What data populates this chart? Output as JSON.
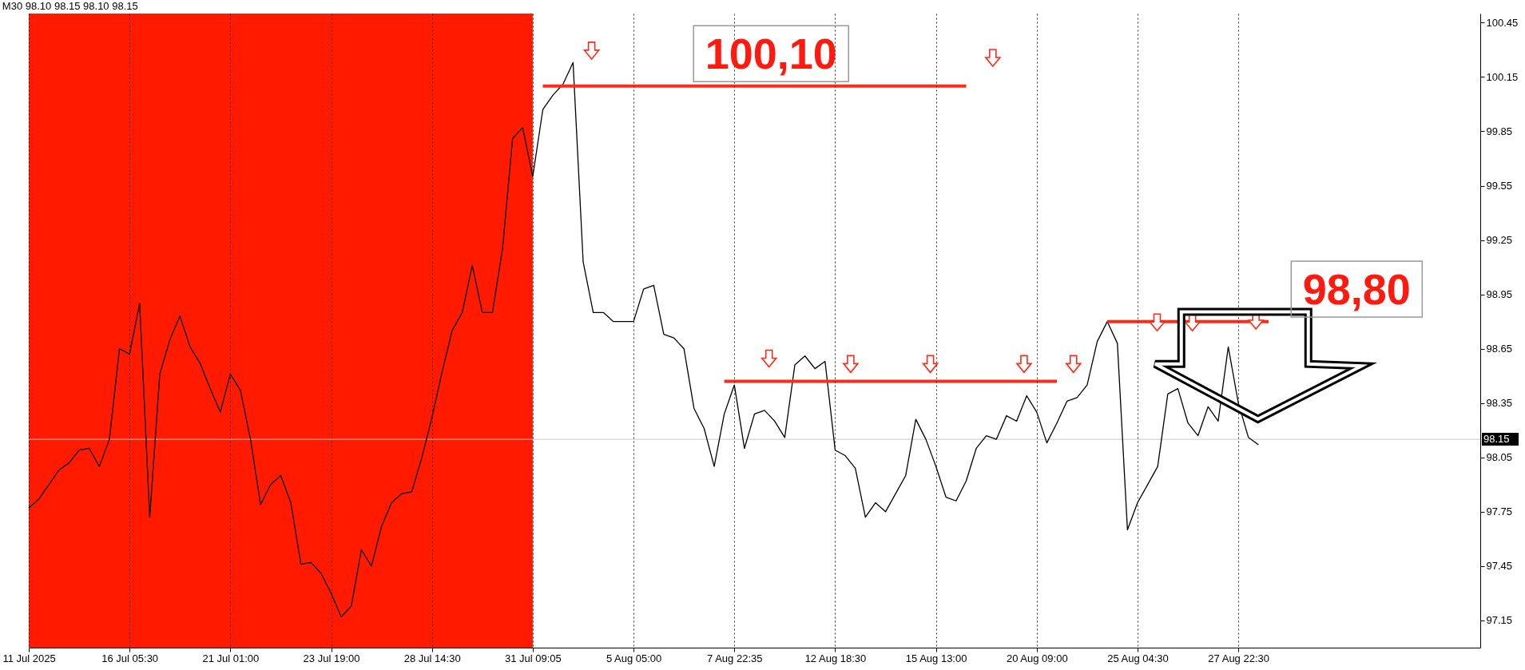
{
  "chart_data": {
    "type": "line",
    "title": "M30 98.10 98.15 98.10 98.15",
    "categories": [
      "11 Jul 2025",
      null,
      null,
      null,
      null,
      null,
      null,
      null,
      null,
      null,
      "16 Jul 05:30",
      null,
      null,
      null,
      null,
      null,
      null,
      null,
      null,
      null,
      "21 Jul 01:00",
      null,
      null,
      null,
      null,
      null,
      null,
      null,
      null,
      null,
      "23 Jul 19:00",
      null,
      null,
      null,
      null,
      null,
      null,
      null,
      null,
      null,
      "28 Jul 14:30",
      null,
      null,
      null,
      null,
      null,
      null,
      null,
      null,
      null,
      "31 Jul 09:05",
      null,
      null,
      null,
      null,
      null,
      null,
      null,
      null,
      null,
      "5 Aug 05:00",
      null,
      null,
      null,
      null,
      null,
      null,
      null,
      null,
      null,
      "7 Aug 22:35",
      null,
      null,
      null,
      null,
      null,
      null,
      null,
      null,
      null,
      "12 Aug 18:30",
      null,
      null,
      null,
      null,
      null,
      null,
      null,
      null,
      null,
      "15 Aug 13:00",
      null,
      null,
      null,
      null,
      null,
      null,
      null,
      null,
      null,
      "20 Aug 09:00",
      null,
      null,
      null,
      null,
      null,
      null,
      null,
      null,
      null,
      "25 Aug 04:30",
      null,
      null,
      null,
      null,
      null,
      null,
      null,
      null,
      null,
      "27 Aug 22:30",
      null,
      null,
      null,
      null,
      null,
      null,
      null,
      null,
      null,
      null,
      null,
      null,
      null,
      null,
      null,
      null,
      null,
      null,
      null,
      null,
      null,
      null,
      null,
      null
    ],
    "ylim": [
      97.0,
      100.5
    ],
    "yticks": [
      97.15,
      97.45,
      97.75,
      98.05,
      98.35,
      98.65,
      98.95,
      99.25,
      99.55,
      99.85,
      100.15,
      100.45
    ],
    "grid": "x",
    "line_style": "solid",
    "series": [
      {
        "color": "#000000",
        "values": [
          97.77,
          97.82,
          97.9,
          97.98,
          98.02,
          98.09,
          98.1,
          98.0,
          98.15,
          98.65,
          98.62,
          98.9,
          97.72,
          98.51,
          98.7,
          98.83,
          98.66,
          98.57,
          98.43,
          98.3,
          98.51,
          98.42,
          98.15,
          97.79,
          97.9,
          97.95,
          97.8,
          97.46,
          97.47,
          97.41,
          97.3,
          97.17,
          97.23,
          97.54,
          97.45,
          97.67,
          97.8,
          97.85,
          97.86,
          98.05,
          98.27,
          98.52,
          98.75,
          98.85,
          99.11,
          98.85,
          98.85,
          99.2,
          99.81,
          99.87,
          99.6,
          99.97,
          100.05,
          100.11,
          100.23,
          99.13,
          98.85,
          98.85,
          98.8,
          98.8,
          98.8,
          98.98,
          99.0,
          98.73,
          98.71,
          98.65,
          98.32,
          98.21,
          98.0,
          98.29,
          98.45,
          98.1,
          98.29,
          98.31,
          98.25,
          98.16,
          98.56,
          98.61,
          98.54,
          98.58,
          98.09,
          98.06,
          97.99,
          97.72,
          97.8,
          97.75,
          97.85,
          97.95,
          98.26,
          98.15,
          98.0,
          97.83,
          97.81,
          97.92,
          98.1,
          98.17,
          98.15,
          98.28,
          98.25,
          98.39,
          98.3,
          98.13,
          98.24,
          98.36,
          98.38,
          98.45,
          98.69,
          98.8,
          98.68,
          97.65,
          97.8,
          97.9,
          98.0,
          98.4,
          98.43,
          98.24,
          98.17,
          98.33,
          98.25,
          98.66,
          98.35,
          98.16,
          98.12,
          null,
          null,
          null,
          null,
          null,
          null,
          null,
          null,
          null,
          null,
          null,
          null,
          null,
          null,
          null,
          null,
          null,
          null,
          null,
          null,
          null,
          null
        ]
      },
      {
        "color": "#ff2a1a",
        "values": [
          null,
          null,
          null,
          null,
          null,
          null,
          null,
          null,
          null,
          null,
          null,
          null,
          null,
          null,
          null,
          null,
          null,
          null,
          null,
          null,
          null,
          null,
          null,
          null,
          null,
          null,
          null,
          null,
          null,
          null,
          null,
          null,
          null,
          null,
          null,
          null,
          null,
          null,
          null,
          null,
          null,
          null,
          null,
          null,
          null,
          null,
          null,
          null,
          null,
          null,
          null,
          100.1,
          100.1,
          100.1,
          100.1,
          100.1,
          100.1,
          100.1,
          100.1,
          100.1,
          100.1,
          100.1,
          100.1,
          100.1,
          100.1,
          100.1,
          100.1,
          100.1,
          100.1,
          100.1,
          100.1,
          100.1,
          100.1,
          100.1,
          100.1,
          100.1,
          100.1,
          100.1,
          100.1,
          100.1,
          100.1,
          100.1,
          100.1,
          100.1,
          100.1,
          100.1,
          100.1,
          100.1,
          100.1,
          100.1,
          100.1,
          100.1,
          100.1,
          100.1,
          null,
          null,
          null,
          null,
          null,
          null,
          null,
          null,
          null,
          null,
          null,
          null,
          null,
          null,
          null,
          null,
          null,
          null,
          null,
          null,
          null,
          null,
          null,
          null,
          null,
          null,
          null,
          null,
          null,
          null,
          null,
          null,
          null,
          null,
          null,
          null,
          null,
          null,
          null,
          null,
          null,
          null,
          null,
          null,
          null,
          null,
          null,
          null,
          null,
          null,
          null
        ]
      },
      {
        "color": "#ff2a1a",
        "values": [
          null,
          null,
          null,
          null,
          null,
          null,
          null,
          null,
          null,
          null,
          null,
          null,
          null,
          null,
          null,
          null,
          null,
          null,
          null,
          null,
          null,
          null,
          null,
          null,
          null,
          null,
          null,
          null,
          null,
          null,
          null,
          null,
          null,
          null,
          null,
          null,
          null,
          null,
          null,
          null,
          null,
          null,
          null,
          null,
          null,
          null,
          null,
          null,
          null,
          null,
          null,
          null,
          null,
          null,
          null,
          null,
          null,
          null,
          null,
          null,
          null,
          null,
          null,
          null,
          null,
          null,
          null,
          null,
          null,
          98.47,
          98.47,
          98.47,
          98.47,
          98.47,
          98.47,
          98.47,
          98.47,
          98.47,
          98.47,
          98.47,
          98.47,
          98.47,
          98.47,
          98.47,
          98.47,
          98.47,
          98.47,
          98.47,
          98.47,
          98.47,
          98.47,
          98.47,
          98.47,
          98.47,
          98.47,
          98.47,
          98.47,
          98.47,
          98.47,
          98.47,
          98.47,
          98.47,
          98.47,
          null,
          null,
          null,
          null,
          null,
          null,
          null,
          null,
          null,
          null,
          null,
          null,
          null,
          null,
          null,
          null,
          null,
          null,
          null,
          null,
          null,
          null,
          null,
          null,
          null,
          null,
          null,
          null,
          null,
          null,
          null,
          null,
          null,
          null,
          null,
          null,
          null,
          null,
          null,
          null,
          null,
          null
        ]
      },
      {
        "color": "#ff2a1a",
        "values": [
          null,
          null,
          null,
          null,
          null,
          null,
          null,
          null,
          null,
          null,
          null,
          null,
          null,
          null,
          null,
          null,
          null,
          null,
          null,
          null,
          null,
          null,
          null,
          null,
          null,
          null,
          null,
          null,
          null,
          null,
          null,
          null,
          null,
          null,
          null,
          null,
          null,
          null,
          null,
          null,
          null,
          null,
          null,
          null,
          null,
          null,
          null,
          null,
          null,
          null,
          null,
          null,
          null,
          null,
          null,
          null,
          null,
          null,
          null,
          null,
          null,
          null,
          null,
          null,
          null,
          null,
          null,
          null,
          null,
          null,
          null,
          null,
          null,
          null,
          null,
          null,
          null,
          null,
          null,
          null,
          null,
          null,
          null,
          null,
          null,
          null,
          null,
          null,
          null,
          null,
          null,
          null,
          null,
          null,
          null,
          null,
          null,
          null,
          null,
          null,
          null,
          null,
          null,
          null,
          null,
          null,
          null,
          98.8,
          98.8,
          98.8,
          98.8,
          98.8,
          98.8,
          98.8,
          98.8,
          98.8,
          98.8,
          98.8,
          98.8,
          98.8,
          98.8,
          98.8,
          98.8,
          98.8,
          null,
          null,
          null,
          null,
          null,
          null,
          null,
          null,
          null,
          null,
          null,
          null,
          null,
          null,
          null,
          null,
          null,
          null,
          null,
          null,
          null
        ]
      }
    ],
    "ref_lines": [
      {
        "axis": "y",
        "value": 98.15,
        "label": "98.15",
        "color": "#c8c8c8"
      }
    ],
    "bands": [
      {
        "axis": "x",
        "from": "11 Jul 2025",
        "to": "31 Jul 09:05",
        "color": "#ff1a00"
      }
    ],
    "annotations": [
      "100,10",
      "98,80"
    ]
  }
}
